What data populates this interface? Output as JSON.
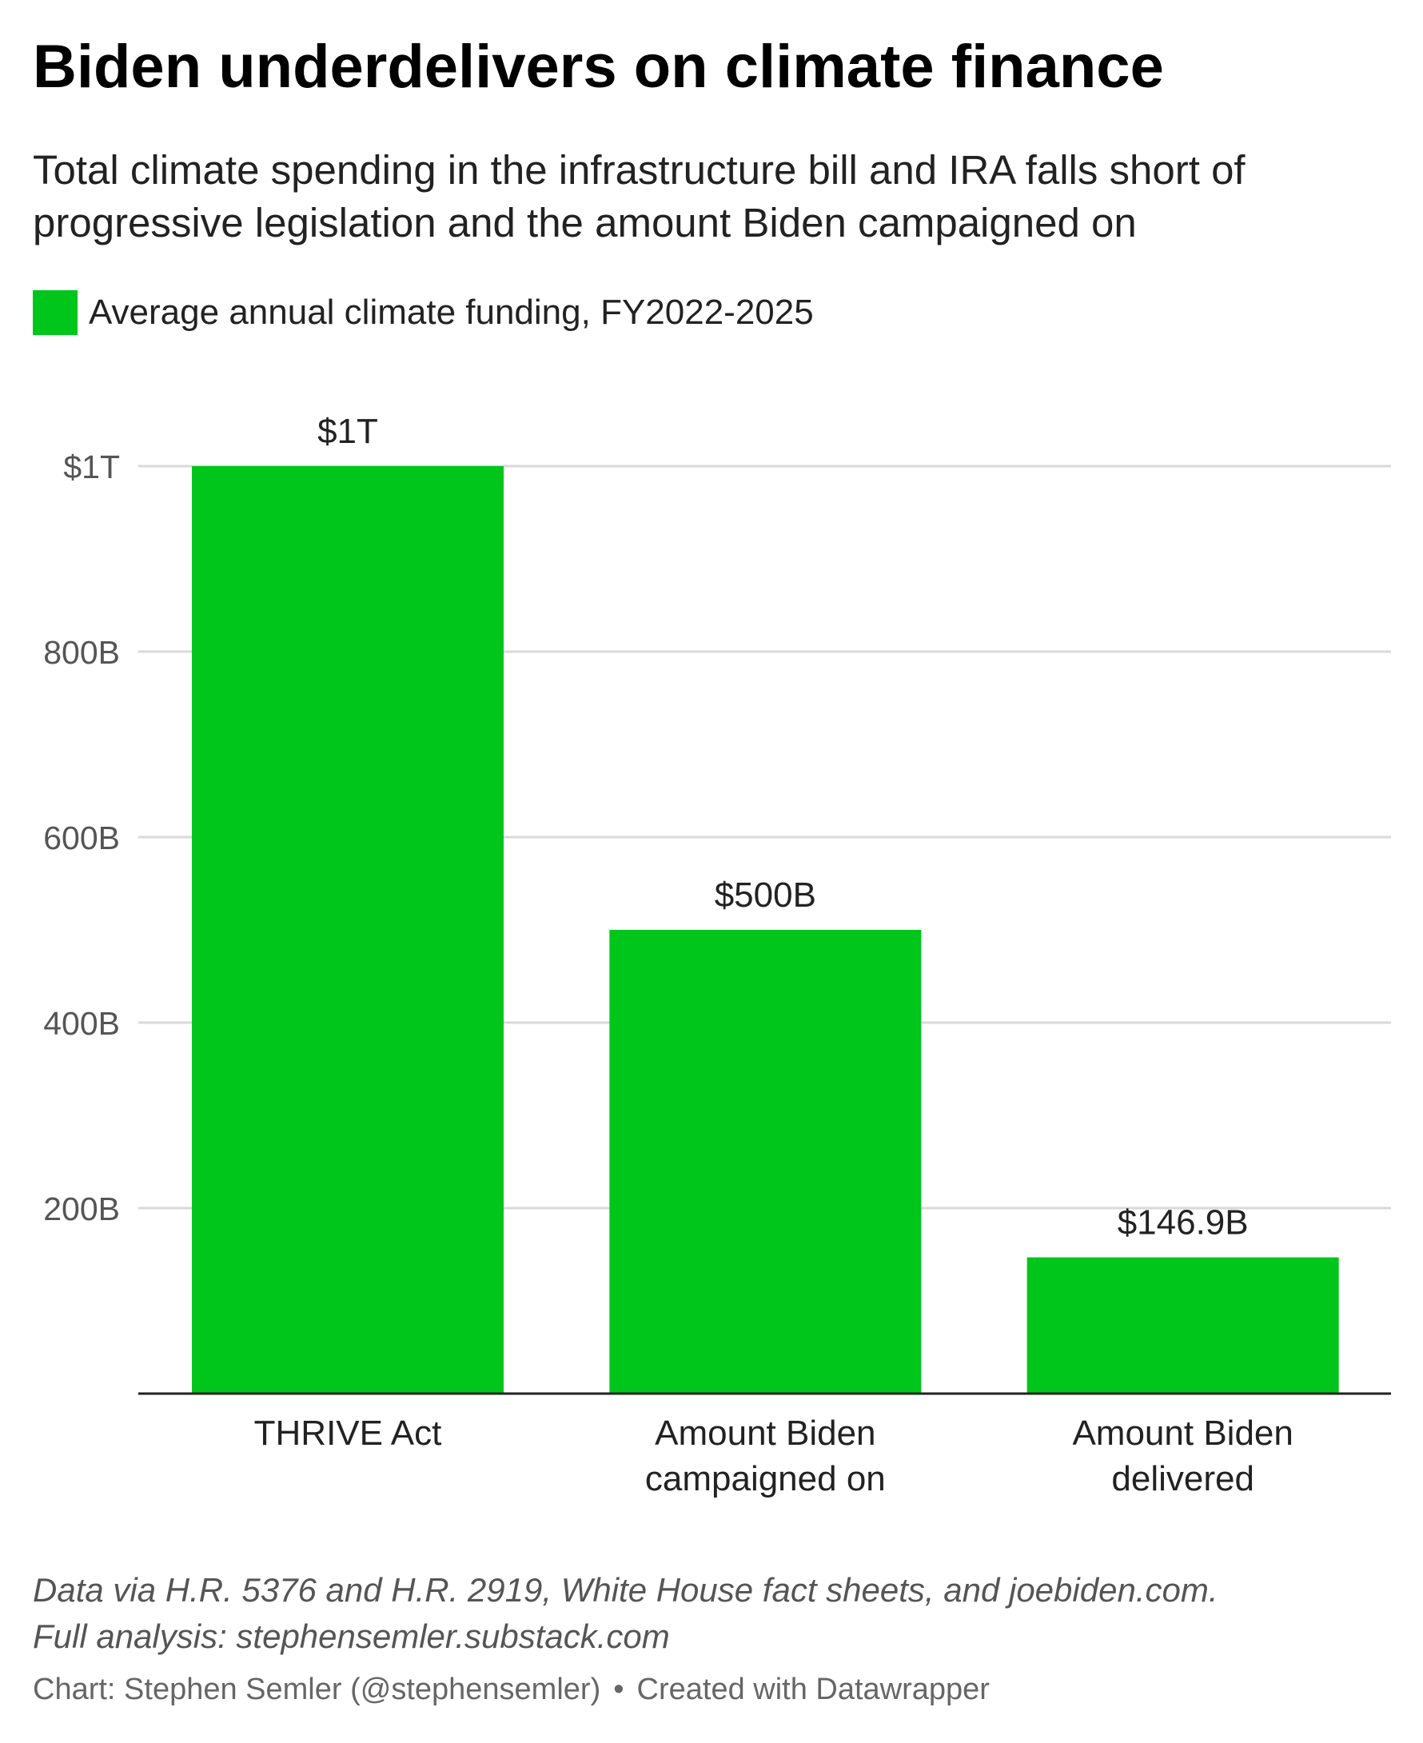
{
  "title": "Biden underdelivers on climate finance",
  "subtitle": "Total climate spending in the infrastructure bill and IRA falls short of progressive legislation and the amount Biden campaigned on",
  "legend": {
    "label": "Average annual climate funding, FY2022-2025",
    "color": "#00c61b"
  },
  "notes": {
    "line1": "Data via H.R. 5376 and H.R. 2919, White House fact sheets, and joebiden.com.",
    "line2": "Full analysis: stephensemler.substack.com"
  },
  "byline": {
    "chart": "Chart: Stephen Semler (@stephensemler)",
    "separator": "•",
    "tool": "Created with Datawrapper"
  },
  "chart_data": {
    "type": "bar",
    "categories": [
      [
        "THRIVE Act"
      ],
      [
        "Amount Biden",
        "campaigned on"
      ],
      [
        "Amount Biden",
        "delivered"
      ]
    ],
    "series": [
      {
        "name": "Average annual climate funding, FY2022-2025",
        "values": [
          1000,
          500,
          146.9
        ],
        "data_labels": [
          "$1T",
          "$500B",
          "$146.9B"
        ]
      }
    ],
    "unit": "billions of dollars",
    "ylim": [
      0,
      1000
    ],
    "yticks": [
      200,
      400,
      600,
      800,
      1000
    ],
    "ytick_labels": [
      "200B",
      "400B",
      "600B",
      "800B",
      "$1T"
    ],
    "grid": true,
    "bar_color": "#00c61b",
    "legend_position": "top-left"
  }
}
